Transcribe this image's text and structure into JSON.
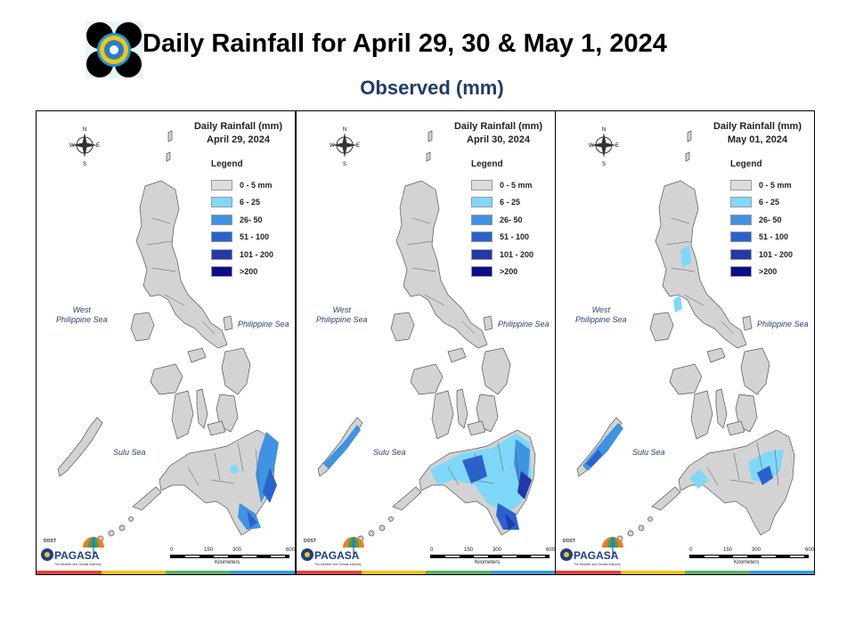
{
  "header": {
    "title": "Daily Rainfall for April  29, 30 & May 1, 2024",
    "subtitle": "Observed (mm)"
  },
  "legend": {
    "heading": "Legend",
    "classes": [
      {
        "label": "0 - 5 mm",
        "color": "#dcdcdc"
      },
      {
        "label": "6 - 25",
        "color": "#7fd8f8"
      },
      {
        "label": "26- 50",
        "color": "#3f93e0"
      },
      {
        "label": "51 - 100",
        "color": "#2a62cc"
      },
      {
        "label": "101 - 200",
        "color": "#2339a8"
      },
      {
        "label": ">200",
        "color": "#0a0f88"
      }
    ]
  },
  "panels": [
    {
      "title": "Daily Rainfall (mm)",
      "date": "April 29, 2024",
      "palawan_rain": "none",
      "luzon_rain": "none"
    },
    {
      "title": "Daily Rainfall (mm)",
      "date": "April 30, 2024",
      "palawan_rain": "light",
      "luzon_rain": "none"
    },
    {
      "title": "Daily Rainfall (mm)",
      "date": "May 01, 2024",
      "palawan_rain": "moderate",
      "luzon_rain": "light"
    }
  ],
  "labels": {
    "west_sea": "West\nPhilippine Sea",
    "philippine_sea": "Philippine Sea",
    "sulu_sea": "Sulu Sea",
    "compass_n": "N",
    "compass_s": "S",
    "compass_e": "E",
    "compass_w": "W",
    "scale_ticks": [
      "0",
      "150",
      "300",
      "600"
    ],
    "scale_unit": "Kilometers",
    "agency": "PAGASA",
    "agency_tag": "The Weather and Climate Authority",
    "agency_dept": "DOST"
  }
}
